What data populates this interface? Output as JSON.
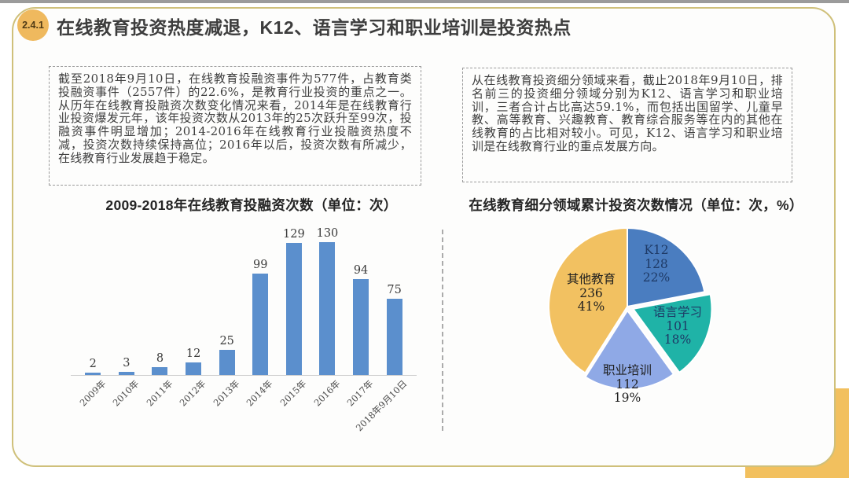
{
  "header": {
    "badge": "2.4.1",
    "title": "在线教育投资热度减退，K12、语言学习和职业培训是投资热点"
  },
  "left_panel": {
    "text": "截至2018年9月10日，在线教育投融资事件为577件，占教育类投融资事件（2557件）的22.6%，是教育行业投资的重点之一。从历年在线教育投融资次数变化情况来看，2014年是在线教育行业投资爆发元年，该年投资次数从2013年的25次跃升至99次，投融资事件明显增加；2014-2016年在线教育行业投融资热度不减，投资次数持续保持高位；2016年以后，投资次数有所减少，在线教育行业发展趋于稳定。"
  },
  "right_panel": {
    "text": "从在线教育投资细分领域来看，截止2018年9月10日，排名前三的投资细分领域分别为K12、语言学习和职业培训，三者合计占比高达59.1%，而包括出国留学、儿童早教、高等教育、兴趣教育、教育综合服务等在内的其他在线教育的占比相对较小。可见，K12、语言学习和职业培训是在线教育行业的重点发展方向。"
  },
  "chart_data": [
    {
      "type": "bar",
      "title": "2009-2018年在线教育投融资次数（单位：次）",
      "categories": [
        "2009年",
        "2010年",
        "2011年",
        "2012年",
        "2013年",
        "2014年",
        "2015年",
        "2016年",
        "2017年",
        "2018年9月10日"
      ],
      "values": [
        2,
        3,
        8,
        12,
        25,
        99,
        129,
        130,
        94,
        75
      ],
      "xlabel": "",
      "ylabel": "",
      "ylim": [
        0,
        140
      ],
      "grid": false,
      "legend_position": "none",
      "value_labels": true,
      "bar_color": "#5b8fcd"
    },
    {
      "type": "pie",
      "title": "在线教育细分领域累计投资次数情况（单位：次，%）",
      "start_angle": "12-oclock-clockwise",
      "legend_position": "none",
      "slices": [
        {
          "label": "K12",
          "value": 128,
          "pct": "22%",
          "color": "#4a7dc0"
        },
        {
          "label": "语言学习",
          "value": 101,
          "pct": "18%",
          "color": "#1fb3a7"
        },
        {
          "label": "职业培训",
          "value": 112,
          "pct": "19%",
          "color": "#8fa9e6"
        },
        {
          "label": "其他教育",
          "value": 236,
          "pct": "41%",
          "color": "#f2c161"
        }
      ]
    }
  ],
  "colors": {
    "slide_border": "#cfc07a",
    "badge_bg": "#efb95e",
    "corner_accent": "#f2c05e",
    "top_strip": "#9b9b9b",
    "title_text": "#3d3d3d",
    "bar_blue": "#5b8fcd",
    "pie_label_navy": "#1e3a66",
    "pie_label_dark": "#1f1f1f"
  }
}
